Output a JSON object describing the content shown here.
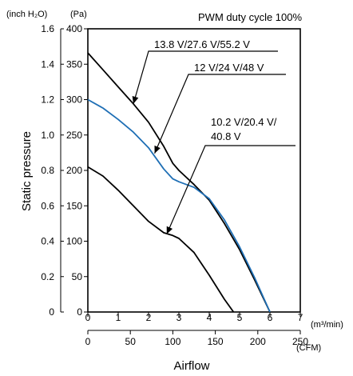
{
  "chart_data": {
    "type": "line",
    "title": "PWM duty cycle 100%",
    "xlabel": "Airflow",
    "ylabel": "Static pressure",
    "x_primary": {
      "unit": "(m³/min)",
      "range": [
        0,
        7
      ],
      "ticks": [
        "0",
        "1",
        "2",
        "3",
        "4",
        "5",
        "6",
        "7"
      ]
    },
    "x_secondary": {
      "unit": "(CFM)",
      "range": [
        0,
        250
      ],
      "ticks": [
        "0",
        "50",
        "100",
        "150",
        "200",
        "250"
      ]
    },
    "y_primary": {
      "unit": "(Pa)",
      "range": [
        0,
        400
      ],
      "ticks": [
        "0",
        "50",
        "100",
        "150",
        "200",
        "250",
        "300",
        "350",
        "400"
      ]
    },
    "y_secondary": {
      "unit": "(inch H₂O)",
      "range": [
        0,
        1.6
      ],
      "ticks": [
        "0",
        "0.2",
        "0.4",
        "0.6",
        "0.8",
        "1.0",
        "1.2",
        "1.4",
        "1.6"
      ]
    },
    "grid": false,
    "series": [
      {
        "name": "13.8 V/27.6 V/55.2 V",
        "color": "#000000",
        "label_line1": "13.8 V/27.6 V/55.2 V",
        "label_line2": "",
        "points": [
          [
            0,
            366
          ],
          [
            0.5,
            342
          ],
          [
            1,
            318
          ],
          [
            1.5,
            294
          ],
          [
            2,
            268
          ],
          [
            2.5,
            234
          ],
          [
            2.8,
            210
          ],
          [
            3,
            200
          ],
          [
            3.5,
            180
          ],
          [
            4,
            158
          ],
          [
            4.5,
            125
          ],
          [
            5,
            88
          ],
          [
            5.5,
            45
          ],
          [
            6,
            0
          ]
        ]
      },
      {
        "name": "12 V/24 V/48 V",
        "color": "#1f6fb5",
        "label_line1": "12 V/24 V/48 V",
        "label_line2": "",
        "points": [
          [
            0,
            300
          ],
          [
            0.5,
            288
          ],
          [
            1,
            272
          ],
          [
            1.5,
            254
          ],
          [
            2,
            232
          ],
          [
            2.5,
            202
          ],
          [
            2.8,
            188
          ],
          [
            3,
            184
          ],
          [
            3.5,
            176
          ],
          [
            4,
            160
          ],
          [
            4.5,
            130
          ],
          [
            5,
            92
          ],
          [
            5.5,
            48
          ],
          [
            6,
            0
          ]
        ]
      },
      {
        "name": "10.2 V/20.4 V/40.8 V",
        "color": "#000000",
        "label_line1": "10.2 V/20.4 V/",
        "label_line2": "40.8 V",
        "points": [
          [
            0,
            205
          ],
          [
            0.5,
            192
          ],
          [
            1,
            172
          ],
          [
            1.5,
            150
          ],
          [
            2,
            128
          ],
          [
            2.5,
            112
          ],
          [
            2.8,
            108
          ],
          [
            3,
            104
          ],
          [
            3.5,
            84
          ],
          [
            4,
            52
          ],
          [
            4.5,
            18
          ],
          [
            4.8,
            0
          ]
        ]
      }
    ]
  }
}
